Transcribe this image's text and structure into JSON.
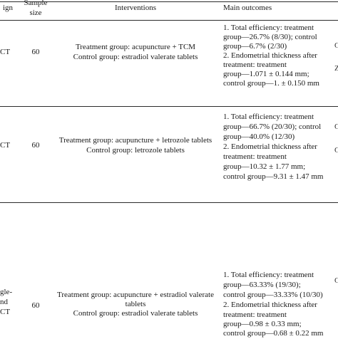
{
  "header": {
    "design": "ign",
    "sample_size": [
      "Sample",
      "size"
    ],
    "interventions": "Interventions",
    "main_outcomes": "Main outcomes"
  },
  "rows": [
    {
      "design": [
        "CT"
      ],
      "sample": "60",
      "interventions": [
        "Treatment group: acupuncture + TCM",
        "Control group: estradiol valerate tablets"
      ],
      "outcomes": [
        "1. Total efficiency: treatment",
        "group—26.7% (8/30); control",
        "group—6.7% (2/30)",
        "2. Endometrial thickness after",
        "treatment: treatment",
        "group—1.071 ± 0.144 mm;",
        "control group—1. ± 0.150 mm"
      ]
    },
    {
      "design": [
        "CT"
      ],
      "sample": "60",
      "interventions": [
        "Treatment group: acupuncture + letrozole tablets",
        "Control group: letrozole tablets"
      ],
      "outcomes": [
        "1. Total efficiency: treatment",
        "group—66.7% (20/30); control",
        "group—40.0% (12/30)",
        "2. Endometrial thickness after",
        "treatment: treatment",
        "group—10.32 ± 1.77 mm;",
        "control group—9.31 ± 1.47 mm"
      ]
    },
    {
      "design": [
        "gle-",
        "nd",
        "CT"
      ],
      "sample": "60",
      "interventions": [
        "Treatment group: acupuncture + estradiol valerate",
        "tablets",
        "Control group: estradiol valerate tablets"
      ],
      "outcomes": [
        "1. Total efficiency: treatment",
        "group—63.33% (19/30);",
        "control group—33.33% (10/30)",
        "2. Endometrial thickness after",
        "treatment: treatment",
        "group—0.98 ± 0.33 mm;",
        "control group—0.68 ± 0.22 mm"
      ]
    }
  ],
  "edge_glyphs": [
    "C",
    "Z",
    "C",
    "C",
    "C"
  ]
}
